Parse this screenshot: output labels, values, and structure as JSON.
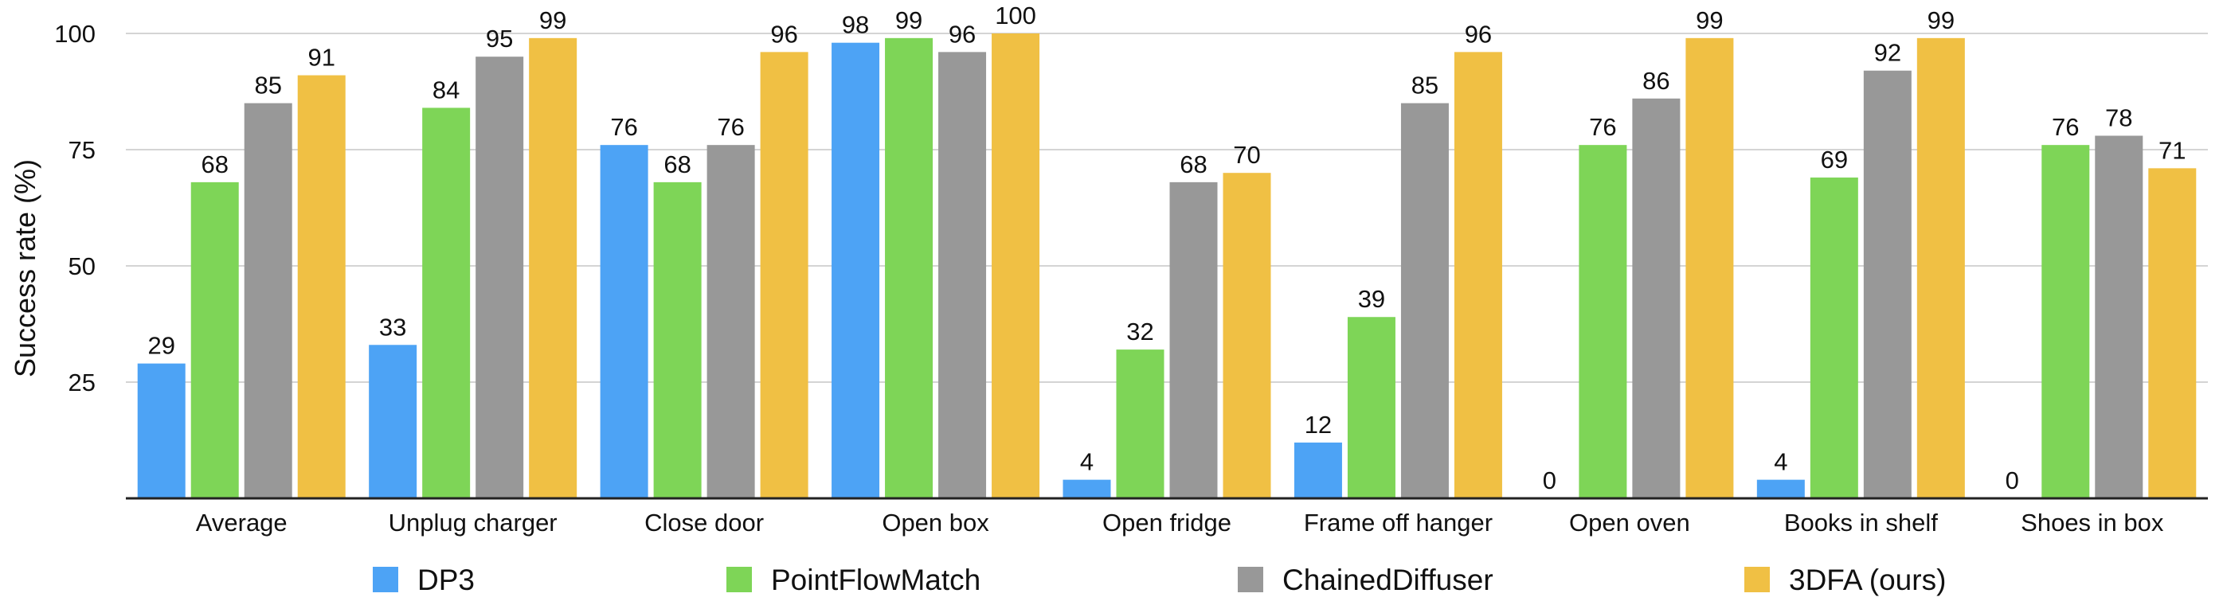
{
  "chart_data": {
    "type": "bar",
    "title": "",
    "xlabel": "",
    "ylabel": "Success rate (%)",
    "ylim": [
      0,
      100
    ],
    "yticks": [
      25,
      50,
      75,
      100
    ],
    "grid": true,
    "legend_position": "bottom",
    "categories": [
      "Average",
      "Unplug charger",
      "Close door",
      "Open box",
      "Open fridge",
      "Frame off hanger",
      "Open oven",
      "Books in shelf",
      "Shoes in box"
    ],
    "series": [
      {
        "name": "DP3",
        "color": "#4da3f5",
        "values": [
          29,
          33,
          76,
          98,
          4,
          12,
          0,
          4,
          0
        ]
      },
      {
        "name": "PointFlowMatch",
        "color": "#7ed557",
        "values": [
          68,
          84,
          68,
          99,
          32,
          39,
          76,
          69,
          76
        ]
      },
      {
        "name": "ChainedDiffuser",
        "color": "#989898",
        "values": [
          85,
          95,
          76,
          96,
          68,
          85,
          86,
          92,
          78
        ]
      },
      {
        "name": "3DFA (ours)",
        "color": "#f0c044",
        "values": [
          91,
          99,
          96,
          100,
          70,
          96,
          99,
          99,
          71
        ]
      }
    ]
  }
}
